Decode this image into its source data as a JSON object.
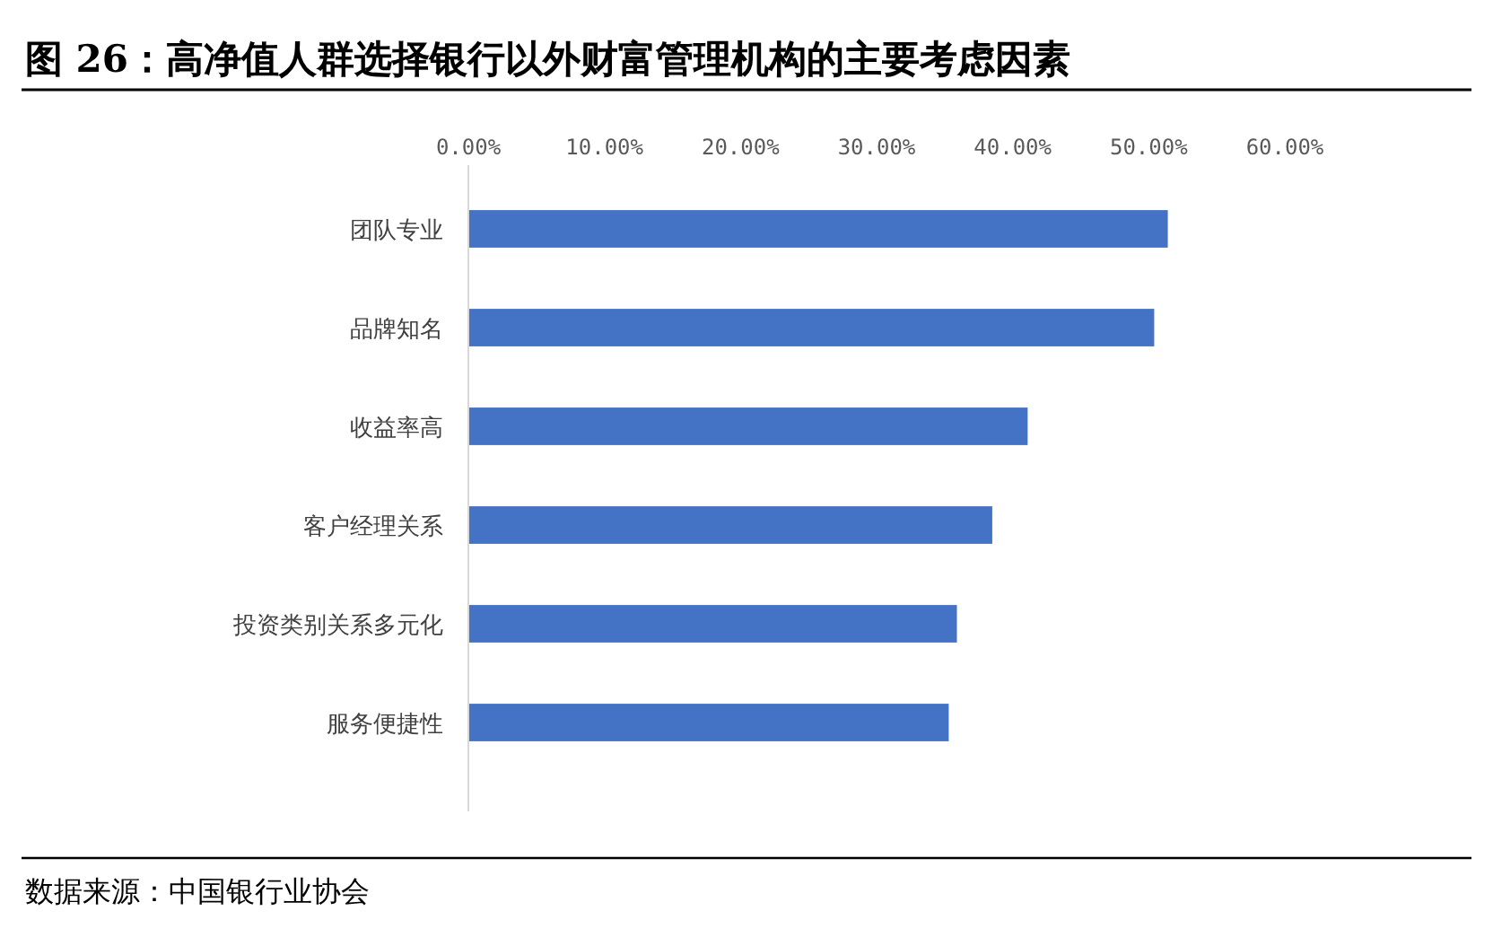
{
  "chart_data": {
    "type": "bar",
    "orientation": "horizontal",
    "title": "图 26：高净值人群选择银行以外财富管理机构的主要考虑因素",
    "categories": [
      "团队专业",
      "品牌知名",
      "收益率高",
      "客户经理关系",
      "投资类别关系多元化",
      "服务便捷性"
    ],
    "values": [
      51.4,
      50.4,
      41.1,
      38.5,
      35.9,
      35.3
    ],
    "color": "#4472c4",
    "xlim": [
      0,
      60
    ],
    "xticks": [
      {
        "value": 0,
        "label": "0.00%"
      },
      {
        "value": 10,
        "label": "10.00%"
      },
      {
        "value": 20,
        "label": "20.00%"
      },
      {
        "value": 30,
        "label": "30.00%"
      },
      {
        "value": 40,
        "label": "40.00%"
      },
      {
        "value": 50,
        "label": "50.00%"
      },
      {
        "value": 60,
        "label": "60.00%"
      }
    ],
    "grid": false,
    "annotations": [
      "数据来源：中国银行业协会"
    ]
  }
}
